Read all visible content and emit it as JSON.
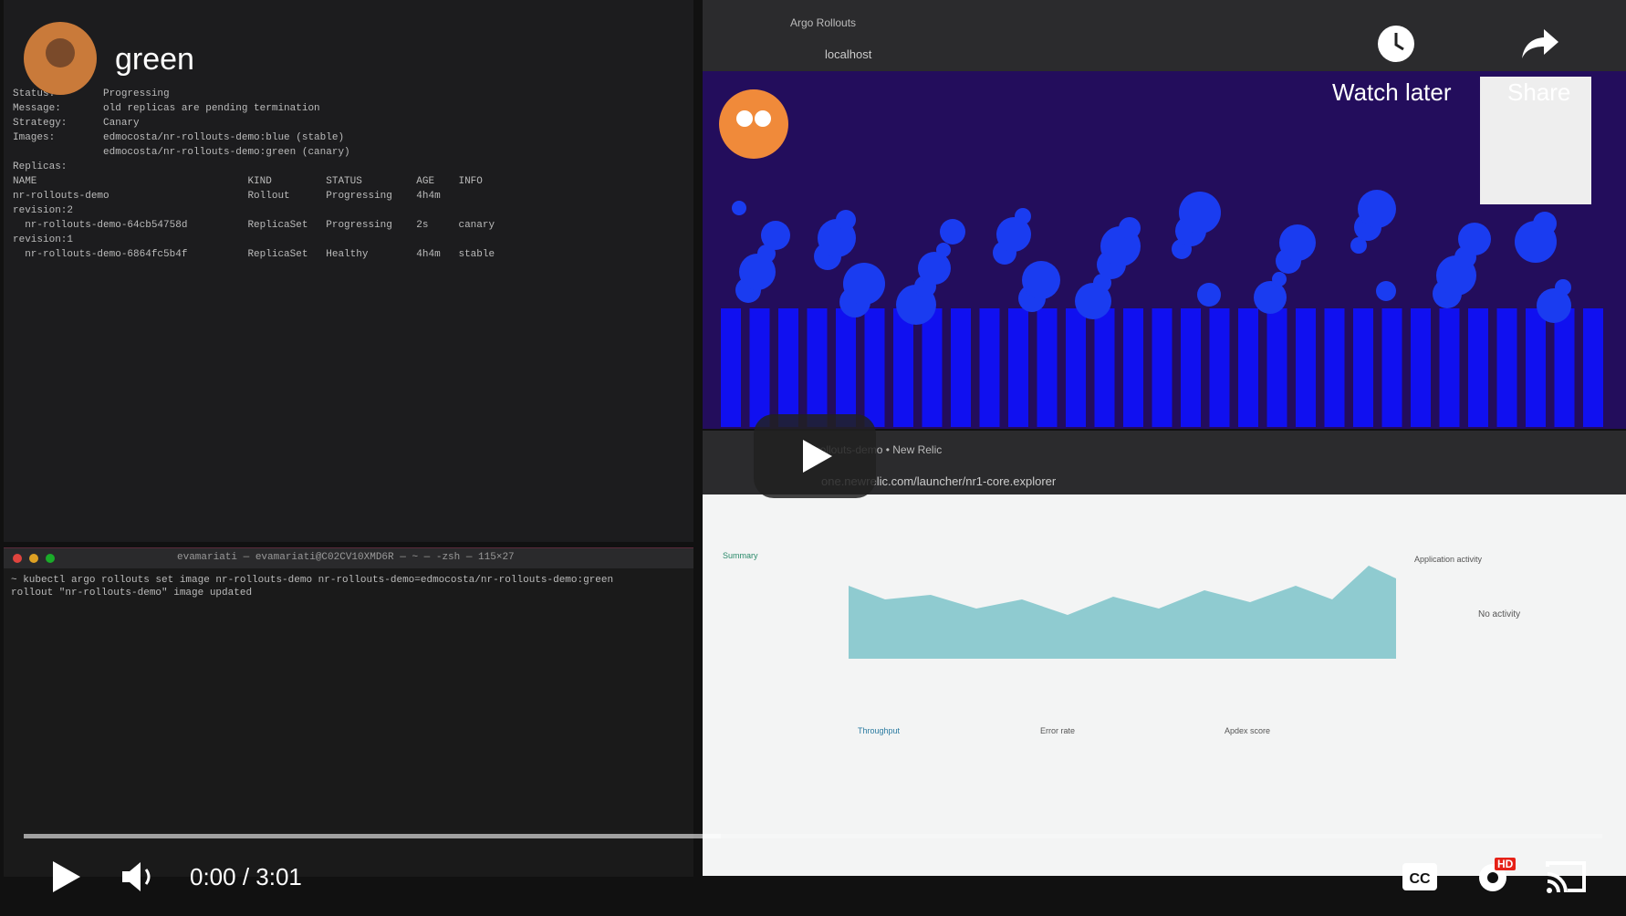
{
  "video": {
    "title": "green",
    "watch_later": "Watch later",
    "share": "Share",
    "time": "0:00 / 3:01",
    "hd_badge": "HD"
  },
  "terminal_top": {
    "lines": [
      "Status:        Progressing",
      "Message:       old replicas are pending termination",
      "Strategy:      Canary",
      "Images:        edmocosta/nr-rollouts-demo:blue (stable)",
      "               edmocosta/nr-rollouts-demo:green (canary)",
      "Replicas:",
      "NAME                                   KIND         STATUS         AGE    INFO",
      "nr-rollouts-demo                       Rollout      Progressing    4h4m",
      "revision:2",
      "  nr-rollouts-demo-64cb54758d          ReplicaSet   Progressing    2s     canary",
      "revision:1",
      "  nr-rollouts-demo-6864fc5b4f          ReplicaSet   Healthy        4h4m   stable"
    ]
  },
  "terminal_bottom": {
    "title": "evamariati — evamariati@C02CV10XMD6R — ~ — -zsh — 115×27",
    "lines": [
      "~ kubectl argo rollouts set image nr-rollouts-demo nr-rollouts-demo=edmocosta/nr-rollouts-demo:green",
      "rollout \"nr-rollouts-demo\" image updated"
    ]
  },
  "browser_top": {
    "tab": "Argo Rollouts",
    "url": "localhost"
  },
  "browser_bottom": {
    "tab": "nr-rollouts-demo • New Relic",
    "url": "one.newrelic.com/launcher/nr1-core.explorer",
    "section": "Summary",
    "widgets": [
      "Throughput",
      "Error rate",
      "Apdex score"
    ],
    "activity": "Application activity",
    "no_activity": "No activity"
  }
}
